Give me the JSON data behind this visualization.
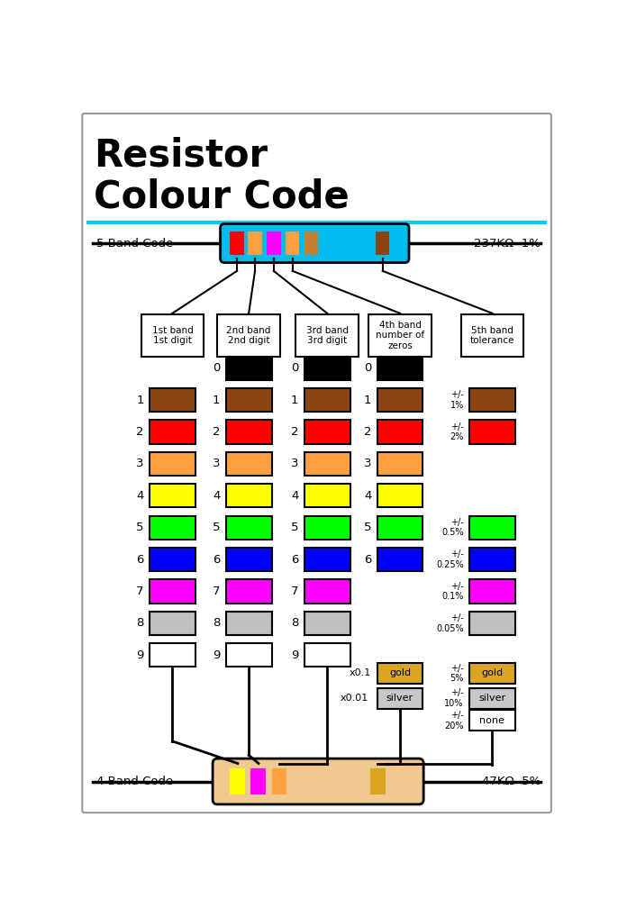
{
  "title_line1": "Resistor",
  "title_line2": "Colour Code",
  "title_fontsize": 28,
  "separator_color": "#00CCFF",
  "bg_color": "#FFFFFF",
  "band5_label": "5 Band Code",
  "band4_label": "4 Band Code",
  "resistor5_value": "237KΩ  1%",
  "resistor4_value": "47KΩ  5%",
  "resistor5_body": "#00BBEE",
  "resistor4_body": "#F0C890",
  "col_headers": [
    "1st band\n1st digit",
    "2nd band\n2nd digit",
    "3rd band\n3rd digit",
    "4th band\nnumber of\nzeros",
    "5th band\ntolerance"
  ],
  "row_colors": [
    "#000000",
    "#8B4513",
    "#FF0000",
    "#FFA040",
    "#FFFF00",
    "#00FF00",
    "#0000FF",
    "#FF00FF",
    "#C0C0C0",
    "#FFFFFF"
  ],
  "row_labels": [
    "0",
    "1",
    "2",
    "3",
    "4",
    "5",
    "6",
    "7",
    "8",
    "9"
  ],
  "bands5_colors": [
    "#FF0000",
    "#FFA040",
    "#FF00FF",
    "#FFA040",
    "#C08030",
    "#8B4513"
  ],
  "bands4_colors": [
    "#FFFF00",
    "#FF00FF",
    "#FFA040",
    "#DAA520"
  ],
  "gold_color": "#DAA520",
  "silver_color": "#C8C8C8"
}
